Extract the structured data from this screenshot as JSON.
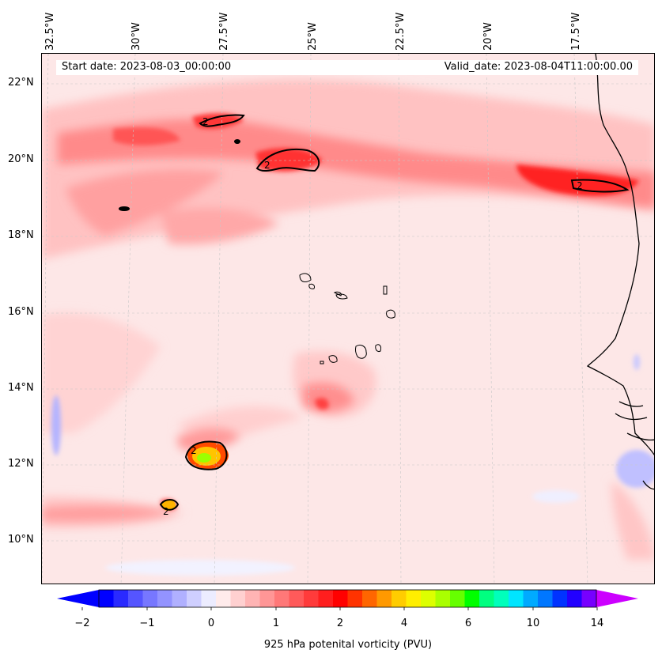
{
  "header": {
    "start_date": "Start date: 2023-08-03_00:00:00",
    "valid_date": "Valid_date: 2023-08-04T11:00:00.00"
  },
  "axes": {
    "lon_labels": [
      "32.5°W",
      "30°W",
      "27.5°W",
      "25°W",
      "22.5°W",
      "20°W",
      "17.5°W"
    ],
    "lat_labels": [
      "22°N",
      "20°N",
      "18°N",
      "16°N",
      "14°N",
      "12°N",
      "10°N"
    ]
  },
  "contour_labels": [
    "2",
    "2",
    "2",
    "2",
    "2"
  ],
  "colorbar": {
    "label": "925 hPa potenital vorticity (PVU)",
    "ticks": [
      "−2",
      "−1",
      "0",
      "1",
      "2",
      "4",
      "6",
      "10",
      "14"
    ],
    "colors": [
      "#0000ff",
      "#2a2aff",
      "#5555ff",
      "#7777ff",
      "#9393ff",
      "#b0b0ff",
      "#cfcfff",
      "#ececff",
      "#ffebeb",
      "#ffd0d0",
      "#ffb4b4",
      "#ff9696",
      "#ff7878",
      "#ff5a5a",
      "#ff3b3b",
      "#ff1e1e",
      "#ff0000",
      "#ff3300",
      "#ff6600",
      "#ff9900",
      "#ffcc00",
      "#ffee00",
      "#ddff00",
      "#aaff00",
      "#66ff00",
      "#00ff00",
      "#00ff80",
      "#00ffbb",
      "#00e5ff",
      "#00aaff",
      "#0077ff",
      "#0033ff",
      "#2200ff",
      "#7700ff"
    ],
    "min_color": "#0000ff",
    "max_color": "#cc00ff"
  }
}
